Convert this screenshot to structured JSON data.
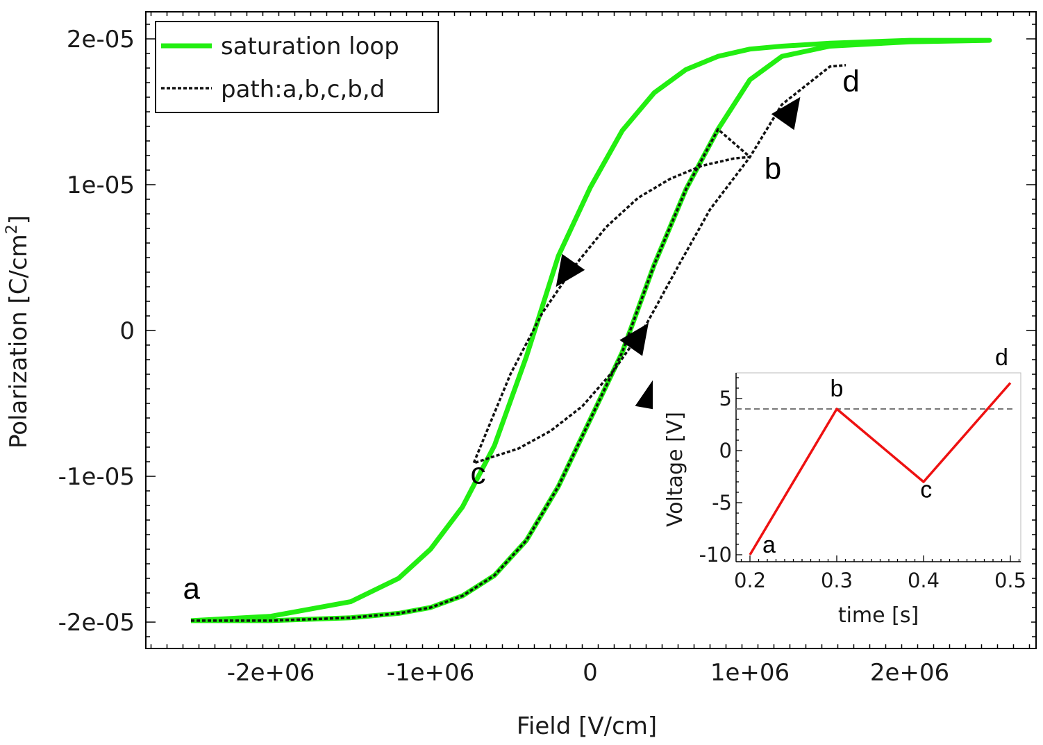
{
  "colors": {
    "saturation": "#22ee11",
    "path": "#111111",
    "inset_line": "#ee1111",
    "threshold": "#777777"
  },
  "chart_data": [
    {
      "type": "line",
      "xlabel": "Field [V/cm]",
      "ylabel_main": "Polarization [C/cm",
      "ylabel_sup": "2",
      "ylabel_tail": "]",
      "xlim": [
        -2750000,
        2750000
      ],
      "ylim": [
        -2.15e-05,
        2.15e-05
      ],
      "xticks": [
        -2000000,
        -1000000,
        0,
        1000000,
        2000000
      ],
      "xtick_labels": [
        "-2e+06",
        "-1e+06",
        "0",
        "1e+06",
        "2e+06"
      ],
      "yticks": [
        -2e-05,
        -1e-05,
        0,
        1e-05,
        2e-05
      ],
      "ytick_labels": [
        "-2e-05",
        "-1e-05",
        "0",
        "1e-05",
        "2e-05"
      ],
      "legend_position": "top-left",
      "series": [
        {
          "name": "saturation loop",
          "style": "solid",
          "x": [
            -2500000,
            -2000000,
            -1500000,
            -1200000,
            -1000000,
            -800000,
            -600000,
            -400000,
            -200000,
            0,
            200000,
            400000,
            600000,
            800000,
            1000000,
            1200000,
            1500000,
            2000000,
            2500000,
            2000000,
            1500000,
            1200000,
            1000000,
            800000,
            600000,
            400000,
            200000,
            0,
            -200000,
            -400000,
            -600000,
            -800000,
            -1000000,
            -1200000,
            -1500000,
            -2000000,
            -2500000
          ],
          "y": [
            -1.99e-05,
            -1.99e-05,
            -1.97e-05,
            -1.94e-05,
            -1.9e-05,
            -1.82e-05,
            -1.68e-05,
            -1.44e-05,
            -1.07e-05,
            -6.1e-06,
            -1.5e-06,
            4.5e-06,
            9.7e-06,
            1.38e-05,
            1.72e-05,
            1.88e-05,
            1.95e-05,
            1.98e-05,
            1.99e-05,
            1.99e-05,
            1.97e-05,
            1.95e-05,
            1.93e-05,
            1.88e-05,
            1.79e-05,
            1.63e-05,
            1.37e-05,
            9.8e-06,
            5.1e-06,
            -1.8e-06,
            -7.9e-06,
            -1.21e-05,
            -1.5e-05,
            -1.7e-05,
            -1.86e-05,
            -1.96e-05,
            -1.99e-05
          ]
        },
        {
          "name": "path:a,b,c,b,d",
          "style": "dashed",
          "x": [
            -2500000,
            -2000000,
            -1500000,
            -1200000,
            -1000000,
            -800000,
            -600000,
            -400000,
            -200000,
            0,
            200000,
            400000,
            600000,
            800000,
            1000000,
            900000,
            700000,
            500000,
            300000,
            100000,
            -100000,
            -300000,
            -500000,
            -730000,
            -620000,
            -450000,
            -250000,
            -50000,
            150000,
            350000,
            550000,
            750000,
            1000000,
            1200000,
            1500000,
            1600000
          ],
          "y": [
            -1.99e-05,
            -1.99e-05,
            -1.97e-05,
            -1.94e-05,
            -1.9e-05,
            -1.82e-05,
            -1.68e-05,
            -1.44e-05,
            -1.07e-05,
            -6.1e-06,
            -1.5e-06,
            4.5e-06,
            9.7e-06,
            1.38e-05,
            1.19e-05,
            1.18e-05,
            1.13e-05,
            1.04e-05,
            9.1e-06,
            7.1e-06,
            4.4e-06,
            1.2e-06,
            -3e-06,
            -9.1e-06,
            -8.7e-06,
            -8.1e-06,
            -6.9e-06,
            -5.2e-06,
            -2.7e-06,
            4e-07,
            4.4e-06,
            8.3e-06,
            1.19e-05,
            1.55e-05,
            1.81e-05,
            1.82e-05
          ]
        }
      ],
      "point_labels": [
        {
          "text": "a",
          "x": -2550000,
          "y": -1.84e-05
        },
        {
          "text": "b",
          "x": 1090000,
          "y": 1.04e-05
        },
        {
          "text": "c",
          "x": -750000,
          "y": -1.05e-05
        },
        {
          "text": "d",
          "x": 1580000,
          "y": 1.64e-05
        }
      ],
      "arrows": [
        {
          "x": 1250000,
          "y": 1.5e-05,
          "dir": "up-right"
        },
        {
          "x": -150000,
          "y": 4e-06,
          "dir": "down-left"
        },
        {
          "x": 300000,
          "y": -5e-07,
          "dir": "up-right"
        },
        {
          "x": 380000,
          "y": -4.5e-06,
          "dir": "up"
        }
      ]
    },
    {
      "type": "line",
      "xlabel": "time [s]",
      "ylabel": "Voltage [V]",
      "xlim": [
        0.19,
        0.51
      ],
      "ylim": [
        -10.8,
        7.3
      ],
      "xticks": [
        0.2,
        0.3,
        0.4,
        0.5
      ],
      "xtick_labels": [
        "0.2",
        "0.3",
        "0.4",
        "0.5"
      ],
      "yticks": [
        -10,
        -5,
        0,
        5
      ],
      "ytick_labels": [
        "-10",
        "-5",
        "0",
        "5"
      ],
      "threshold": 4,
      "series": [
        {
          "x": [
            0.2,
            0.3,
            0.4,
            0.5
          ],
          "y": [
            -10,
            4,
            -3,
            6.5
          ]
        }
      ],
      "point_labels": [
        {
          "text": "a",
          "x": 0.222,
          "y": -9.8
        },
        {
          "text": "b",
          "x": 0.3,
          "y": 5.2
        },
        {
          "text": "c",
          "x": 0.403,
          "y": -4.5
        },
        {
          "text": "d",
          "x": 0.49,
          "y": 8.2
        }
      ]
    }
  ]
}
